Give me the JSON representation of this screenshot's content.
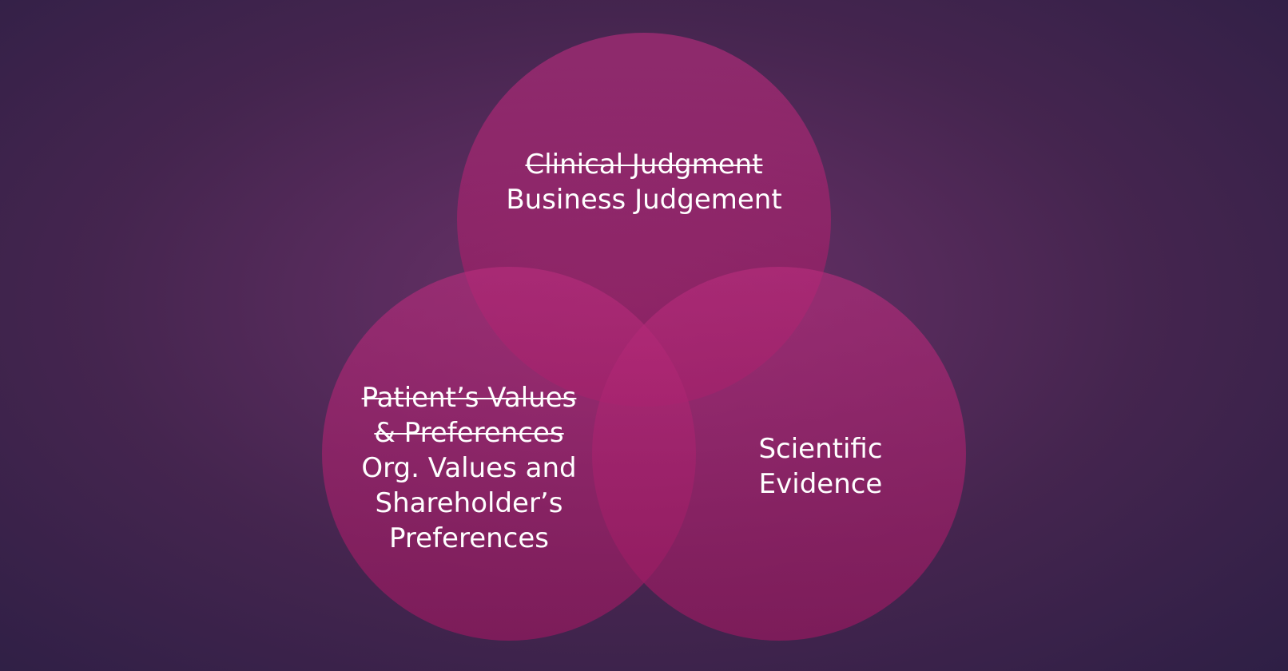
{
  "diagram": {
    "circles": [
      {
        "id": "top",
        "struck_lines": [
          "Clinical Judgment"
        ],
        "lines": [
          "Business Judgement"
        ]
      },
      {
        "id": "left",
        "struck_lines": [
          "Patient’s Values",
          "& Preferences"
        ],
        "lines": [
          "Org. Values and",
          "Shareholder’s",
          "Preferences"
        ]
      },
      {
        "id": "right",
        "struck_lines": [],
        "lines": [
          "Scientific",
          "Evidence"
        ]
      }
    ],
    "circle_color": "#b42d7d",
    "background_color": "#4a2753"
  }
}
